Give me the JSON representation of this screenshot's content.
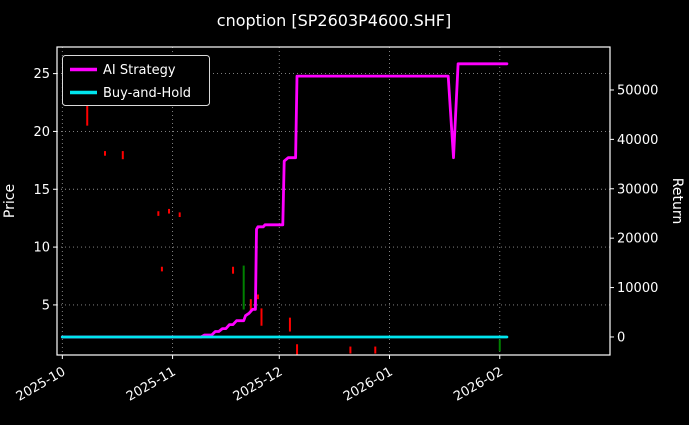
{
  "title": "cnoption [SP2603P4600.SHF]",
  "colors": {
    "background": "#000000",
    "text": "#ffffff",
    "grid": "#8f8f8f",
    "border": "#ffffff",
    "ai_strategy": "#ff00ff",
    "buy_and_hold": "#00e5ee",
    "bar_up": "#008000",
    "bar_down": "#ff0000"
  },
  "legend": {
    "items": [
      {
        "label": "AI Strategy",
        "color_key": "ai_strategy"
      },
      {
        "label": "Buy-and-Hold",
        "color_key": "buy_and_hold"
      }
    ]
  },
  "axes": {
    "left": {
      "label": "Price",
      "ticks": [
        5,
        10,
        15,
        20,
        25
      ],
      "range": [
        0.67,
        27.3
      ]
    },
    "right": {
      "label": "Return",
      "ticks": [
        0,
        10000,
        20000,
        30000,
        40000,
        50000
      ],
      "range": [
        -3650,
        58700
      ]
    },
    "x": {
      "ticks": [
        {
          "day": 0,
          "label": "2025-10"
        },
        {
          "day": 31,
          "label": "2025-11"
        },
        {
          "day": 61,
          "label": "2025-12"
        },
        {
          "day": 92,
          "label": "2026-01"
        },
        {
          "day": 123,
          "label": "2026-02"
        }
      ],
      "range": [
        -1.5,
        154
      ]
    }
  },
  "chart_data": {
    "type": "line",
    "title": "cnoption [SP2603P4600.SHF]",
    "x_unit": "days since 2025-10-01",
    "x_tick_labels": [
      "2025-10",
      "2025-11",
      "2025-12",
      "2026-01",
      "2026-02"
    ],
    "ylabel_left": "Price",
    "ylabel_right": "Return",
    "ylim_left": [
      0.67,
      27.3
    ],
    "ylim_right": [
      -3650,
      58700
    ],
    "grid": true,
    "legend_position": "upper-left",
    "series": [
      {
        "name": "AI Strategy",
        "axis": "right",
        "color_key": "ai_strategy",
        "points": [
          [
            0,
            0
          ],
          [
            39,
            0
          ],
          [
            40,
            400
          ],
          [
            42,
            400
          ],
          [
            43,
            1100
          ],
          [
            44,
            1100
          ],
          [
            45,
            1700
          ],
          [
            46,
            1700
          ],
          [
            47,
            2500
          ],
          [
            48,
            2500
          ],
          [
            49,
            3300
          ],
          [
            51,
            3300
          ],
          [
            51.5,
            4300
          ],
          [
            52.5,
            4800
          ],
          [
            53.5,
            5600
          ],
          [
            54.3,
            5600
          ],
          [
            54.6,
            21800
          ],
          [
            55,
            22300
          ],
          [
            56.5,
            22300
          ],
          [
            57,
            22700
          ],
          [
            62,
            22700
          ],
          [
            62.4,
            35600
          ],
          [
            63.5,
            36300
          ],
          [
            65.6,
            36300
          ],
          [
            66,
            52800
          ],
          [
            108.5,
            52800
          ],
          [
            110,
            36300
          ],
          [
            111.3,
            55300
          ],
          [
            125,
            55300
          ]
        ]
      },
      {
        "name": "Buy-and-Hold",
        "axis": "right",
        "color_key": "buy_and_hold",
        "points": [
          [
            0,
            0
          ],
          [
            125,
            0
          ]
        ]
      }
    ],
    "price_bars": [
      {
        "day": 7,
        "low": 20.5,
        "high": 22.2,
        "dir": "down"
      },
      {
        "day": 12,
        "low": 17.9,
        "high": 18.3,
        "dir": "down"
      },
      {
        "day": 17,
        "low": 17.6,
        "high": 18.3,
        "dir": "down"
      },
      {
        "day": 27,
        "low": 12.7,
        "high": 13.1,
        "dir": "down"
      },
      {
        "day": 28,
        "low": 7.9,
        "high": 8.3,
        "dir": "down"
      },
      {
        "day": 30,
        "low": 12.9,
        "high": 13.3,
        "dir": "down"
      },
      {
        "day": 33,
        "low": 12.6,
        "high": 13.0,
        "dir": "down"
      },
      {
        "day": 48,
        "low": 7.7,
        "high": 8.3,
        "dir": "down"
      },
      {
        "day": 51,
        "low": 4.6,
        "high": 8.4,
        "dir": "up"
      },
      {
        "day": 53,
        "low": 4.5,
        "high": 5.5,
        "dir": "down"
      },
      {
        "day": 55,
        "low": 5.5,
        "high": 5.9,
        "dir": "down"
      },
      {
        "day": 56,
        "low": 3.2,
        "high": 4.7,
        "dir": "down"
      },
      {
        "day": 64,
        "low": 2.7,
        "high": 3.9,
        "dir": "down"
      },
      {
        "day": 66,
        "low": 0.7,
        "high": 1.6,
        "dir": "down"
      },
      {
        "day": 81,
        "low": 0.8,
        "high": 1.4,
        "dir": "down"
      },
      {
        "day": 88,
        "low": 0.8,
        "high": 1.4,
        "dir": "down"
      },
      {
        "day": 123,
        "low": 1.0,
        "high": 2.0,
        "dir": "up"
      }
    ]
  }
}
